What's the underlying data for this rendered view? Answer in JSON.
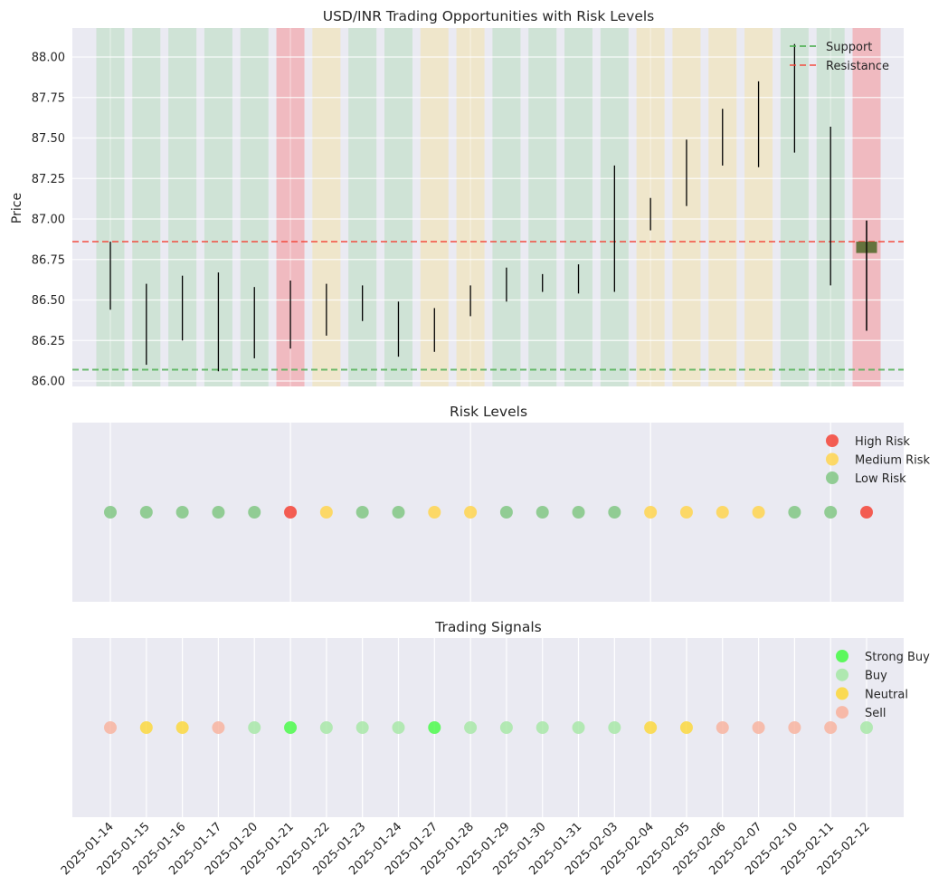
{
  "figure": {
    "panels": [
      "price",
      "risk",
      "signals"
    ]
  },
  "chart_data": [
    {
      "type": "bar",
      "subtype": "high-low range bars with risk-shaded background",
      "title": "USD/INR Trading Opportunities with Risk Levels",
      "xlabel": "",
      "ylabel": "Price",
      "ylim": [
        85.97,
        88.18
      ],
      "yticks": [
        "86.00",
        "86.25",
        "86.50",
        "86.75",
        "87.00",
        "87.25",
        "87.50",
        "87.75",
        "88.00"
      ],
      "grid": true,
      "legend_position": "top-right",
      "categories": [
        "2025-01-14",
        "2025-01-15",
        "2025-01-16",
        "2025-01-17",
        "2025-01-20",
        "2025-01-21",
        "2025-01-22",
        "2025-01-23",
        "2025-01-24",
        "2025-01-27",
        "2025-01-28",
        "2025-01-29",
        "2025-01-30",
        "2025-01-31",
        "2025-02-03",
        "2025-02-04",
        "2025-02-05",
        "2025-02-06",
        "2025-02-07",
        "2025-02-10",
        "2025-02-11",
        "2025-02-12"
      ],
      "high": [
        86.86,
        86.6,
        86.65,
        86.67,
        86.58,
        86.62,
        86.6,
        86.59,
        86.49,
        86.45,
        86.59,
        86.7,
        86.66,
        86.72,
        87.33,
        87.13,
        87.49,
        87.68,
        87.85,
        88.08,
        87.57,
        86.99
      ],
      "low": [
        86.44,
        86.1,
        86.25,
        86.06,
        86.14,
        86.2,
        86.28,
        86.37,
        86.15,
        86.18,
        86.4,
        86.49,
        86.55,
        86.54,
        86.55,
        86.93,
        87.08,
        87.33,
        87.32,
        87.41,
        86.59,
        86.31
      ],
      "highlight_box": {
        "date": "2025-02-12",
        "top": 86.86,
        "bottom": 86.79,
        "color": "#556b2f"
      },
      "support": 86.07,
      "resistance": 86.86,
      "series": [
        {
          "name": "Support",
          "style": "dashed",
          "color": "#4caf50"
        },
        {
          "name": "Resistance",
          "style": "dashed",
          "color": "#f44336"
        }
      ],
      "background_risk": [
        "Low",
        "Low",
        "Low",
        "Low",
        "Low",
        "High",
        "Medium",
        "Low",
        "Low",
        "Medium",
        "Medium",
        "Low",
        "Low",
        "Low",
        "Low",
        "Medium",
        "Medium",
        "Medium",
        "Medium",
        "Low",
        "Low",
        "High"
      ]
    },
    {
      "type": "scatter",
      "title": "Risk Levels",
      "categories": [
        "2025-01-14",
        "2025-01-15",
        "2025-01-16",
        "2025-01-17",
        "2025-01-20",
        "2025-01-21",
        "2025-01-22",
        "2025-01-23",
        "2025-01-24",
        "2025-01-27",
        "2025-01-28",
        "2025-01-29",
        "2025-01-30",
        "2025-01-31",
        "2025-02-03",
        "2025-02-04",
        "2025-02-05",
        "2025-02-06",
        "2025-02-07",
        "2025-02-10",
        "2025-02-11",
        "2025-02-12"
      ],
      "values": [
        "Low",
        "Low",
        "Low",
        "Low",
        "Low",
        "High",
        "Medium",
        "Low",
        "Low",
        "Medium",
        "Medium",
        "Low",
        "Low",
        "Low",
        "Low",
        "Medium",
        "Medium",
        "Medium",
        "Medium",
        "Low",
        "Low",
        "High"
      ],
      "legend_position": "top-right",
      "legend": [
        {
          "name": "High Risk",
          "key": "High",
          "color": "#f44336"
        },
        {
          "name": "Medium Risk",
          "key": "Medium",
          "color": "#ffd54f"
        },
        {
          "name": "Low Risk",
          "key": "Low",
          "color": "#81c784"
        }
      ],
      "grid_x_dates": [
        "2025-01-14",
        "2025-01-21",
        "2025-01-28",
        "2025-02-04",
        "2025-02-11"
      ],
      "yticks": []
    },
    {
      "type": "scatter",
      "title": "Trading Signals",
      "categories": [
        "2025-01-14",
        "2025-01-15",
        "2025-01-16",
        "2025-01-17",
        "2025-01-20",
        "2025-01-21",
        "2025-01-22",
        "2025-01-23",
        "2025-01-24",
        "2025-01-27",
        "2025-01-28",
        "2025-01-29",
        "2025-01-30",
        "2025-01-31",
        "2025-02-03",
        "2025-02-04",
        "2025-02-05",
        "2025-02-06",
        "2025-02-07",
        "2025-02-10",
        "2025-02-11",
        "2025-02-12"
      ],
      "values": [
        "Sell",
        "Neutral",
        "Neutral",
        "Sell",
        "Buy",
        "Strong Buy",
        "Buy",
        "Buy",
        "Buy",
        "Strong Buy",
        "Buy",
        "Buy",
        "Buy",
        "Buy",
        "Buy",
        "Neutral",
        "Neutral",
        "Sell",
        "Sell",
        "Sell",
        "Sell",
        "Buy"
      ],
      "legend_position": "top-right",
      "legend": [
        {
          "name": "Strong Buy",
          "key": "Strong Buy",
          "color": "#4cfa4c"
        },
        {
          "name": "Buy",
          "key": "Buy",
          "color": "#a8e8a8"
        },
        {
          "name": "Neutral",
          "key": "Neutral",
          "color": "#fcd840"
        },
        {
          "name": "Sell",
          "key": "Sell",
          "color": "#f8b4a0"
        }
      ],
      "xtick_labels": [
        "2025-01-14",
        "2025-01-15",
        "2025-01-16",
        "2025-01-17",
        "2025-01-20",
        "2025-01-21",
        "2025-01-22",
        "2025-01-23",
        "2025-01-24",
        "2025-01-27",
        "2025-01-28",
        "2025-01-29",
        "2025-01-30",
        "2025-01-31",
        "2025-02-03",
        "2025-02-04",
        "2025-02-05",
        "2025-02-06",
        "2025-02-07",
        "2025-02-10",
        "2025-02-11",
        "2025-02-12"
      ],
      "yticks": []
    }
  ],
  "colors": {
    "axes_bg": "#eaeaf2",
    "grid": "#ffffff",
    "risk_bg": {
      "Low": "#cfe3d6",
      "Medium": "#efe6cb",
      "High": "#f0bac0"
    },
    "bar": "#000000"
  }
}
